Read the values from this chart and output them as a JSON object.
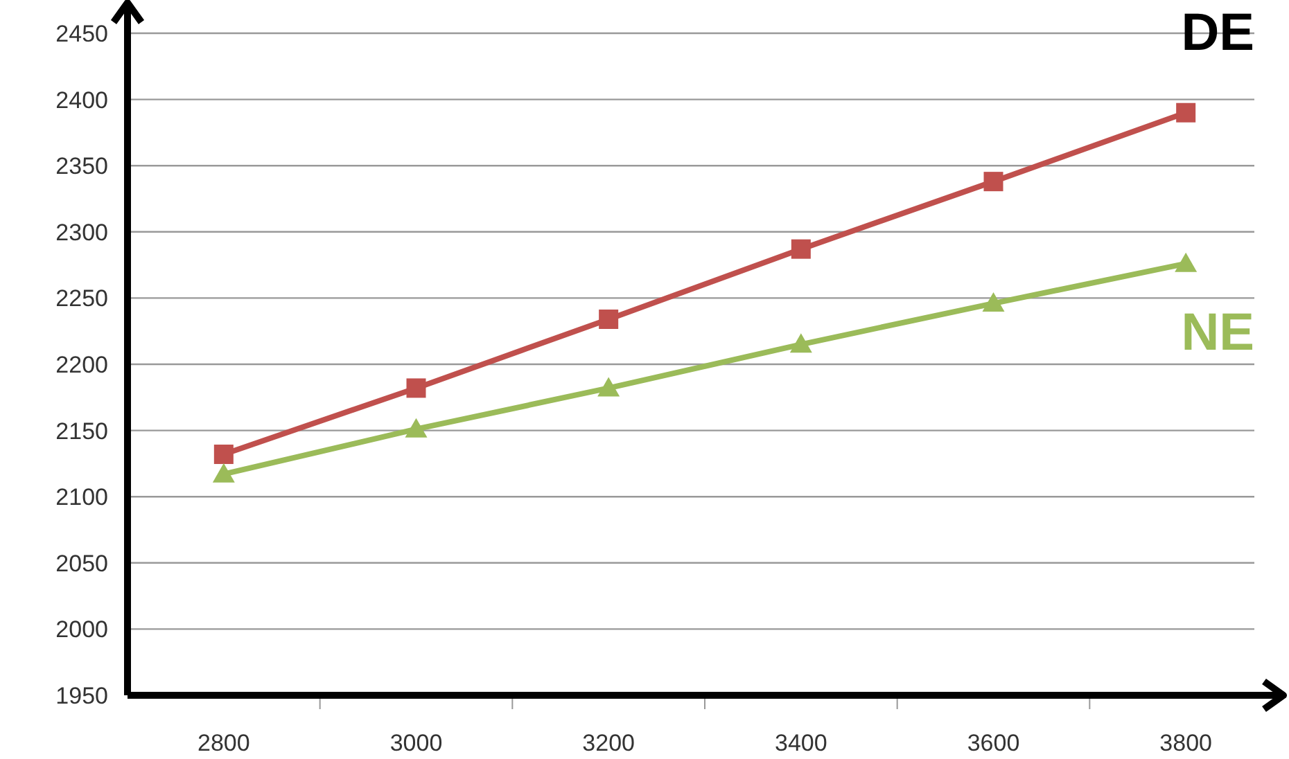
{
  "chart_data": {
    "type": "line",
    "categories": [
      "2800",
      "3000",
      "3200",
      "3400",
      "3600",
      "3800"
    ],
    "series": [
      {
        "name": "DE",
        "color": "#c0504d",
        "marker": "square",
        "values": [
          2132,
          2182,
          2234,
          2287,
          2338,
          2390
        ]
      },
      {
        "name": "NE",
        "color": "#9bbb59",
        "marker": "triangle",
        "values": [
          2117,
          2151,
          2182,
          2215,
          2246,
          2276
        ]
      }
    ],
    "ylim": [
      1950,
      2450
    ],
    "yticks": [
      1950,
      2000,
      2050,
      2100,
      2150,
      2200,
      2250,
      2300,
      2350,
      2400,
      2450
    ],
    "grid": "y",
    "line_style": "solid"
  }
}
